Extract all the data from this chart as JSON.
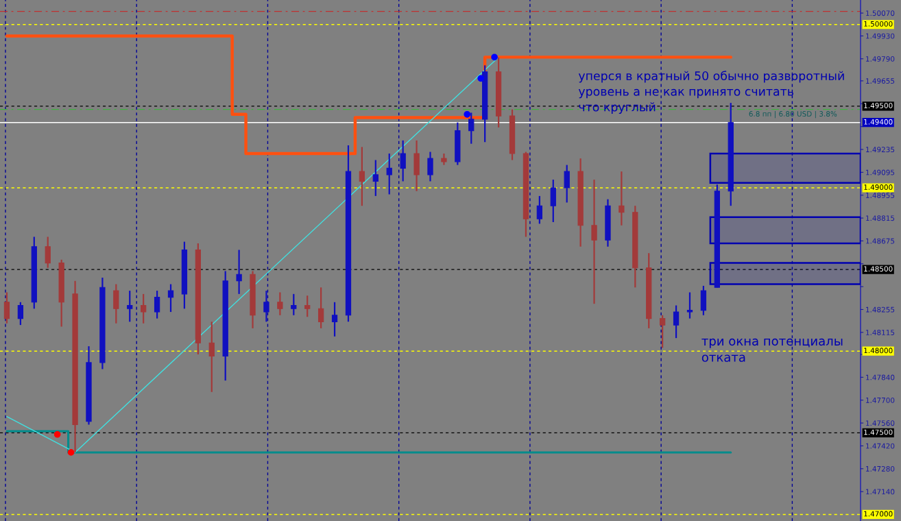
{
  "chart_data": {
    "type": "candlestick",
    "categories": [
      null,
      null,
      null,
      null,
      null,
      null,
      null,
      null,
      null,
      null,
      null,
      null,
      null,
      null,
      null,
      null,
      null,
      null,
      null,
      null,
      null,
      null,
      null,
      null,
      null,
      null,
      null,
      null,
      null,
      null,
      null,
      null,
      null,
      null,
      null,
      null,
      null,
      null,
      null,
      null,
      null,
      null,
      null,
      null,
      null,
      null,
      null,
      null,
      null,
      null,
      null,
      null,
      null,
      null,
      null,
      null,
      null,
      null,
      null,
      null,
      null,
      null,
      null
    ],
    "ohlc": [
      [
        1.483,
        1.4836,
        1.4817,
        1.482
      ],
      [
        1.482,
        1.483,
        1.4816,
        1.4828
      ],
      [
        1.483,
        1.487,
        1.4826,
        1.4864
      ],
      [
        1.4864,
        1.487,
        1.4851,
        1.4854
      ],
      [
        1.4854,
        1.4856,
        1.4815,
        1.483
      ],
      [
        1.4835,
        1.4843,
        1.4738,
        1.4755
      ],
      [
        1.4757,
        1.4803,
        1.4755,
        1.4793
      ],
      [
        1.4793,
        1.4845,
        1.4789,
        1.4839
      ],
      [
        1.4837,
        1.4841,
        1.4817,
        1.4826
      ],
      [
        1.4826,
        1.4837,
        1.4818,
        1.4828
      ],
      [
        1.4828,
        1.4835,
        1.4817,
        1.4824
      ],
      [
        1.4824,
        1.4837,
        1.482,
        1.4833
      ],
      [
        1.4833,
        1.4841,
        1.4824,
        1.4837
      ],
      [
        1.4835,
        1.4867,
        1.4826,
        1.4862
      ],
      [
        1.4862,
        1.4866,
        1.4798,
        1.4805
      ],
      [
        1.4805,
        1.4818,
        1.4775,
        1.4797
      ],
      [
        1.4797,
        1.4849,
        1.4782,
        1.4843
      ],
      [
        1.4843,
        1.4862,
        1.4835,
        1.4847
      ],
      [
        1.4847,
        1.4849,
        1.4814,
        1.4822
      ],
      [
        1.4824,
        1.4837,
        1.4818,
        1.483
      ],
      [
        1.483,
        1.4836,
        1.4822,
        1.4826
      ],
      [
        1.4826,
        1.4835,
        1.4822,
        1.4828
      ],
      [
        1.4828,
        1.4834,
        1.4821,
        1.4826
      ],
      [
        1.4826,
        1.4839,
        1.4814,
        1.4818
      ],
      [
        1.4818,
        1.483,
        1.4809,
        1.4822
      ],
      [
        1.4822,
        1.4926,
        1.4818,
        1.491
      ],
      [
        1.491,
        1.4925,
        1.4889,
        1.4904
      ],
      [
        1.4904,
        1.4917,
        1.4895,
        1.4908
      ],
      [
        1.4908,
        1.4921,
        1.4896,
        1.4912
      ],
      [
        1.4912,
        1.4929,
        1.4904,
        1.4921
      ],
      [
        1.4921,
        1.4929,
        1.4898,
        1.4908
      ],
      [
        1.4908,
        1.4922,
        1.4904,
        1.4918
      ],
      [
        1.4918,
        1.4921,
        1.4914,
        1.4916
      ],
      [
        1.4916,
        1.494,
        1.4914,
        1.4935
      ],
      [
        1.4935,
        1.4946,
        1.4927,
        1.4942
      ],
      [
        1.4942,
        1.4975,
        1.4928,
        1.4971
      ],
      [
        1.4971,
        1.498,
        1.4937,
        1.4944
      ],
      [
        1.4944,
        1.4948,
        1.4917,
        1.4921
      ],
      [
        1.4921,
        1.4922,
        1.487,
        1.4881
      ],
      [
        1.4881,
        1.4895,
        1.4878,
        1.4889
      ],
      [
        1.4889,
        1.4905,
        1.4879,
        1.49
      ],
      [
        1.49,
        1.4914,
        1.4891,
        1.491
      ],
      [
        1.491,
        1.4918,
        1.4864,
        1.4877
      ],
      [
        1.4877,
        1.4905,
        1.4829,
        1.4868
      ],
      [
        1.4868,
        1.4893,
        1.4864,
        1.4889
      ],
      [
        1.4889,
        1.491,
        1.4877,
        1.4885
      ],
      [
        1.4885,
        1.4889,
        1.4839,
        1.4851
      ],
      [
        1.4851,
        1.486,
        1.4814,
        1.482
      ],
      [
        1.482,
        1.4822,
        1.4802,
        1.4816
      ],
      [
        1.4816,
        1.4828,
        1.4808,
        1.4824
      ],
      [
        1.4824,
        1.4836,
        1.482,
        1.4825
      ],
      [
        1.4825,
        1.484,
        1.4822,
        1.4837
      ],
      [
        1.4839,
        1.4902,
        1.4839,
        1.4898
      ],
      [
        1.4898,
        1.4952,
        1.4889,
        1.494
      ],
      null,
      null,
      null,
      null,
      null,
      null,
      null,
      null,
      null
    ],
    "colors": [
      "#a33a3a",
      "#1010c0",
      "#1010c0",
      "#a33a3a",
      "#a33a3a",
      "#a33a3a",
      "#1010c0",
      "#1010c0",
      "#a33a3a",
      "#1010c0",
      "#a33a3a",
      "#1010c0",
      "#1010c0",
      "#1010c0",
      "#a33a3a",
      "#a33a3a",
      "#1010c0",
      "#1010c0",
      "#a33a3a",
      "#1010c0",
      "#a33a3a",
      "#1010c0",
      "#a33a3a",
      "#a33a3a",
      "#1010c0",
      "#1010c0",
      "#a33a3a",
      "#1010c0",
      "#1010c0",
      "#1010c0",
      "#a33a3a",
      "#1010c0",
      "#a33a3a",
      "#1010c0",
      "#1010c0",
      "#1010c0",
      "#a33a3a",
      "#a33a3a",
      "#a33a3a",
      "#1010c0",
      "#1010c0",
      "#1010c0",
      "#a33a3a",
      "#a33a3a",
      "#1010c0",
      "#a33a3a",
      "#a33a3a",
      "#a33a3a",
      "#a33a3a",
      "#1010c0",
      "#1010c0",
      "#1010c0",
      "#1010c0",
      "#1010c0",
      null,
      null,
      null,
      null,
      null,
      null,
      null,
      null,
      null
    ],
    "series": [
      {
        "type": "step",
        "color": "#ff5010",
        "values": [
          1.4993,
          1.4993,
          1.4993,
          1.4993,
          1.4993,
          1.4993,
          1.4993,
          1.4993,
          1.4993,
          1.4993,
          1.4993,
          1.4993,
          1.4993,
          1.4993,
          1.4993,
          1.4993,
          1.4993,
          1.4945,
          1.4921,
          1.4921,
          1.4921,
          1.4921,
          1.4921,
          1.4921,
          1.4921,
          1.4921,
          1.4943,
          1.4943,
          1.4943,
          1.4943,
          1.4943,
          1.4943,
          1.4943,
          1.4943,
          1.4943,
          null,
          1.498,
          1.498,
          1.498,
          1.498,
          1.498,
          1.498,
          1.498,
          1.498,
          1.498,
          1.498,
          1.498,
          1.498,
          1.498,
          1.498,
          1.498,
          1.498,
          1.498,
          1.498,
          null,
          null,
          null,
          null,
          null,
          null,
          null,
          null,
          null
        ]
      },
      {
        "type": "step",
        "color": "#008b8b",
        "values": [
          1.4751,
          1.4751,
          1.4751,
          1.4751,
          1.4751,
          1.4738,
          1.4738,
          1.4738,
          1.4738,
          1.4738,
          1.4738,
          1.4738,
          1.4738,
          1.4738,
          1.4738,
          1.4738,
          1.4738,
          1.4738,
          1.4738,
          1.4738,
          1.4738,
          1.4738,
          1.4738,
          1.4738,
          1.4738,
          1.4738,
          1.4738,
          1.4738,
          1.4738,
          1.4738,
          1.4738,
          1.4738,
          1.4738,
          1.4738,
          1.4738,
          1.4738,
          1.4738,
          1.4738,
          1.4738,
          1.4738,
          1.4738,
          1.4738,
          1.4738,
          1.4738,
          1.4738,
          1.4738,
          1.4738,
          1.4738,
          1.4738,
          1.4738,
          1.4738,
          1.4738,
          1.4738,
          1.4738,
          null,
          null,
          null,
          null,
          null,
          null,
          null,
          null,
          null
        ]
      },
      {
        "type": "line",
        "color": "#40e0e0",
        "values": [
          1.476,
          null,
          null,
          null,
          null,
          1.4738,
          null,
          null,
          null,
          null,
          null,
          null,
          null,
          null,
          null,
          null,
          null,
          null,
          null,
          null,
          null,
          null,
          null,
          null,
          null,
          null,
          null,
          null,
          null,
          null,
          null,
          null,
          null,
          null,
          null,
          null,
          1.498,
          null,
          null,
          null,
          null,
          null,
          null,
          null,
          null,
          null,
          null,
          null,
          null,
          null,
          null,
          null,
          null,
          null,
          null,
          null,
          null,
          null,
          null,
          null,
          null,
          null,
          null
        ]
      },
      {
        "type": "scatter",
        "marker": "circle",
        "color": "#ff0000",
        "values": [
          null,
          null,
          null,
          null,
          1.4749,
          1.4738,
          null,
          null,
          null,
          null,
          null,
          null,
          null,
          null,
          null,
          null,
          null,
          null,
          null,
          null,
          null,
          null,
          null,
          null,
          null,
          null,
          null,
          null,
          null,
          null,
          null,
          null,
          null,
          null,
          null,
          null,
          null,
          null,
          null,
          null,
          null,
          null,
          null,
          null,
          null,
          null,
          null,
          null,
          null,
          null,
          null,
          null,
          null,
          null,
          null,
          null,
          null,
          null,
          null,
          null,
          null,
          null,
          null
        ]
      },
      {
        "type": "scatter",
        "marker": "circle",
        "color": "#0000ff",
        "values": [
          null,
          null,
          null,
          null,
          null,
          null,
          null,
          null,
          null,
          null,
          null,
          null,
          null,
          null,
          null,
          null,
          null,
          null,
          null,
          null,
          null,
          null,
          null,
          null,
          null,
          null,
          null,
          null,
          null,
          null,
          null,
          null,
          null,
          null,
          1.4945,
          1.4967,
          1.498,
          null,
          null,
          null,
          null,
          null,
          null,
          null,
          null,
          null,
          null,
          null,
          null,
          null,
          null,
          null,
          null,
          null,
          null,
          null,
          null,
          null,
          null,
          null,
          null,
          null,
          null
        ]
      }
    ],
    "ylim": [
      1.4696,
      1.5015
    ],
    "yticks": [
      {
        "value": 1.5007,
        "label": "1.50070"
      },
      {
        "value": 1.4993,
        "label": "1.49930"
      },
      {
        "value": 1.4979,
        "label": "1.49790"
      },
      {
        "value": 1.49655,
        "label": "1.49655"
      },
      {
        "value": 1.49515,
        "label": null
      },
      {
        "value": 1.49375,
        "label": null
      },
      {
        "value": 1.49235,
        "label": "1.49235"
      },
      {
        "value": 1.49095,
        "label": "1.49095"
      },
      {
        "value": 1.48955,
        "label": "1.48955"
      },
      {
        "value": 1.48815,
        "label": "1.48815"
      },
      {
        "value": 1.48675,
        "label": "1.48675"
      },
      {
        "value": 1.48535,
        "label": null
      },
      {
        "value": 1.48395,
        "label": null
      },
      {
        "value": 1.48255,
        "label": "1.48255"
      },
      {
        "value": 1.48115,
        "label": "1.48115"
      },
      {
        "value": 1.4798,
        "label": null
      },
      {
        "value": 1.4784,
        "label": "1.47840"
      },
      {
        "value": 1.477,
        "label": "1.47700"
      },
      {
        "value": 1.4756,
        "label": "1.47560"
      },
      {
        "value": 1.4742,
        "label": "1.47420"
      },
      {
        "value": 1.4728,
        "label": "1.47280"
      },
      {
        "value": 1.4714,
        "label": "1.47140"
      }
    ],
    "grid": "x",
    "ref_lines": [
      {
        "axis": "y",
        "value": 1.5008,
        "color": "#c03030",
        "line_style": "dashdot"
      },
      {
        "axis": "y",
        "value": 1.5,
        "label": "1.50000",
        "color": "#ffff00",
        "line_style": "dashed"
      },
      {
        "axis": "y",
        "value": 1.495,
        "label": "1.49500",
        "color": "#000000",
        "line_style": "dashed"
      },
      {
        "axis": "y",
        "value": 1.4948,
        "color": "#40b040",
        "line_style": "dashdot"
      },
      {
        "axis": "y",
        "value": 1.494,
        "label": "1.49400",
        "color": "#ffffff",
        "line_style": "solid"
      },
      {
        "axis": "y",
        "value": 1.49,
        "label": "1.49000",
        "color": "#ffff00",
        "line_style": "dashed"
      },
      {
        "axis": "y",
        "value": 1.485,
        "label": "1.48500",
        "color": "#000000",
        "line_style": "dashed"
      },
      {
        "axis": "y",
        "value": 1.48,
        "label": "1.48000",
        "color": "#ffff00",
        "line_style": "dashed"
      },
      {
        "axis": "y",
        "value": 1.475,
        "label": "1.47500",
        "color": "#000000",
        "line_style": "dashed"
      },
      {
        "axis": "y",
        "value": 1.47,
        "label": "1.47000",
        "color": "#ffff00",
        "line_style": "dashed"
      }
    ],
    "bands": [
      {
        "axis": "y",
        "from": 1.4903,
        "to": 1.4921,
        "color": "#0000b0"
      },
      {
        "axis": "y",
        "from": 1.4866,
        "to": 1.4882,
        "color": "#0000b0"
      },
      {
        "axis": "y",
        "from": 1.4841,
        "to": 1.4854,
        "color": "#0000b0"
      }
    ],
    "annotations": [
      "уперся в кратный 50 обычно разворотный\nуровень а не как принято считать\nчто круглый",
      "три окна потенциалы\nотката",
      "6.8 пп | 6.80 USD | 3.8%"
    ]
  }
}
